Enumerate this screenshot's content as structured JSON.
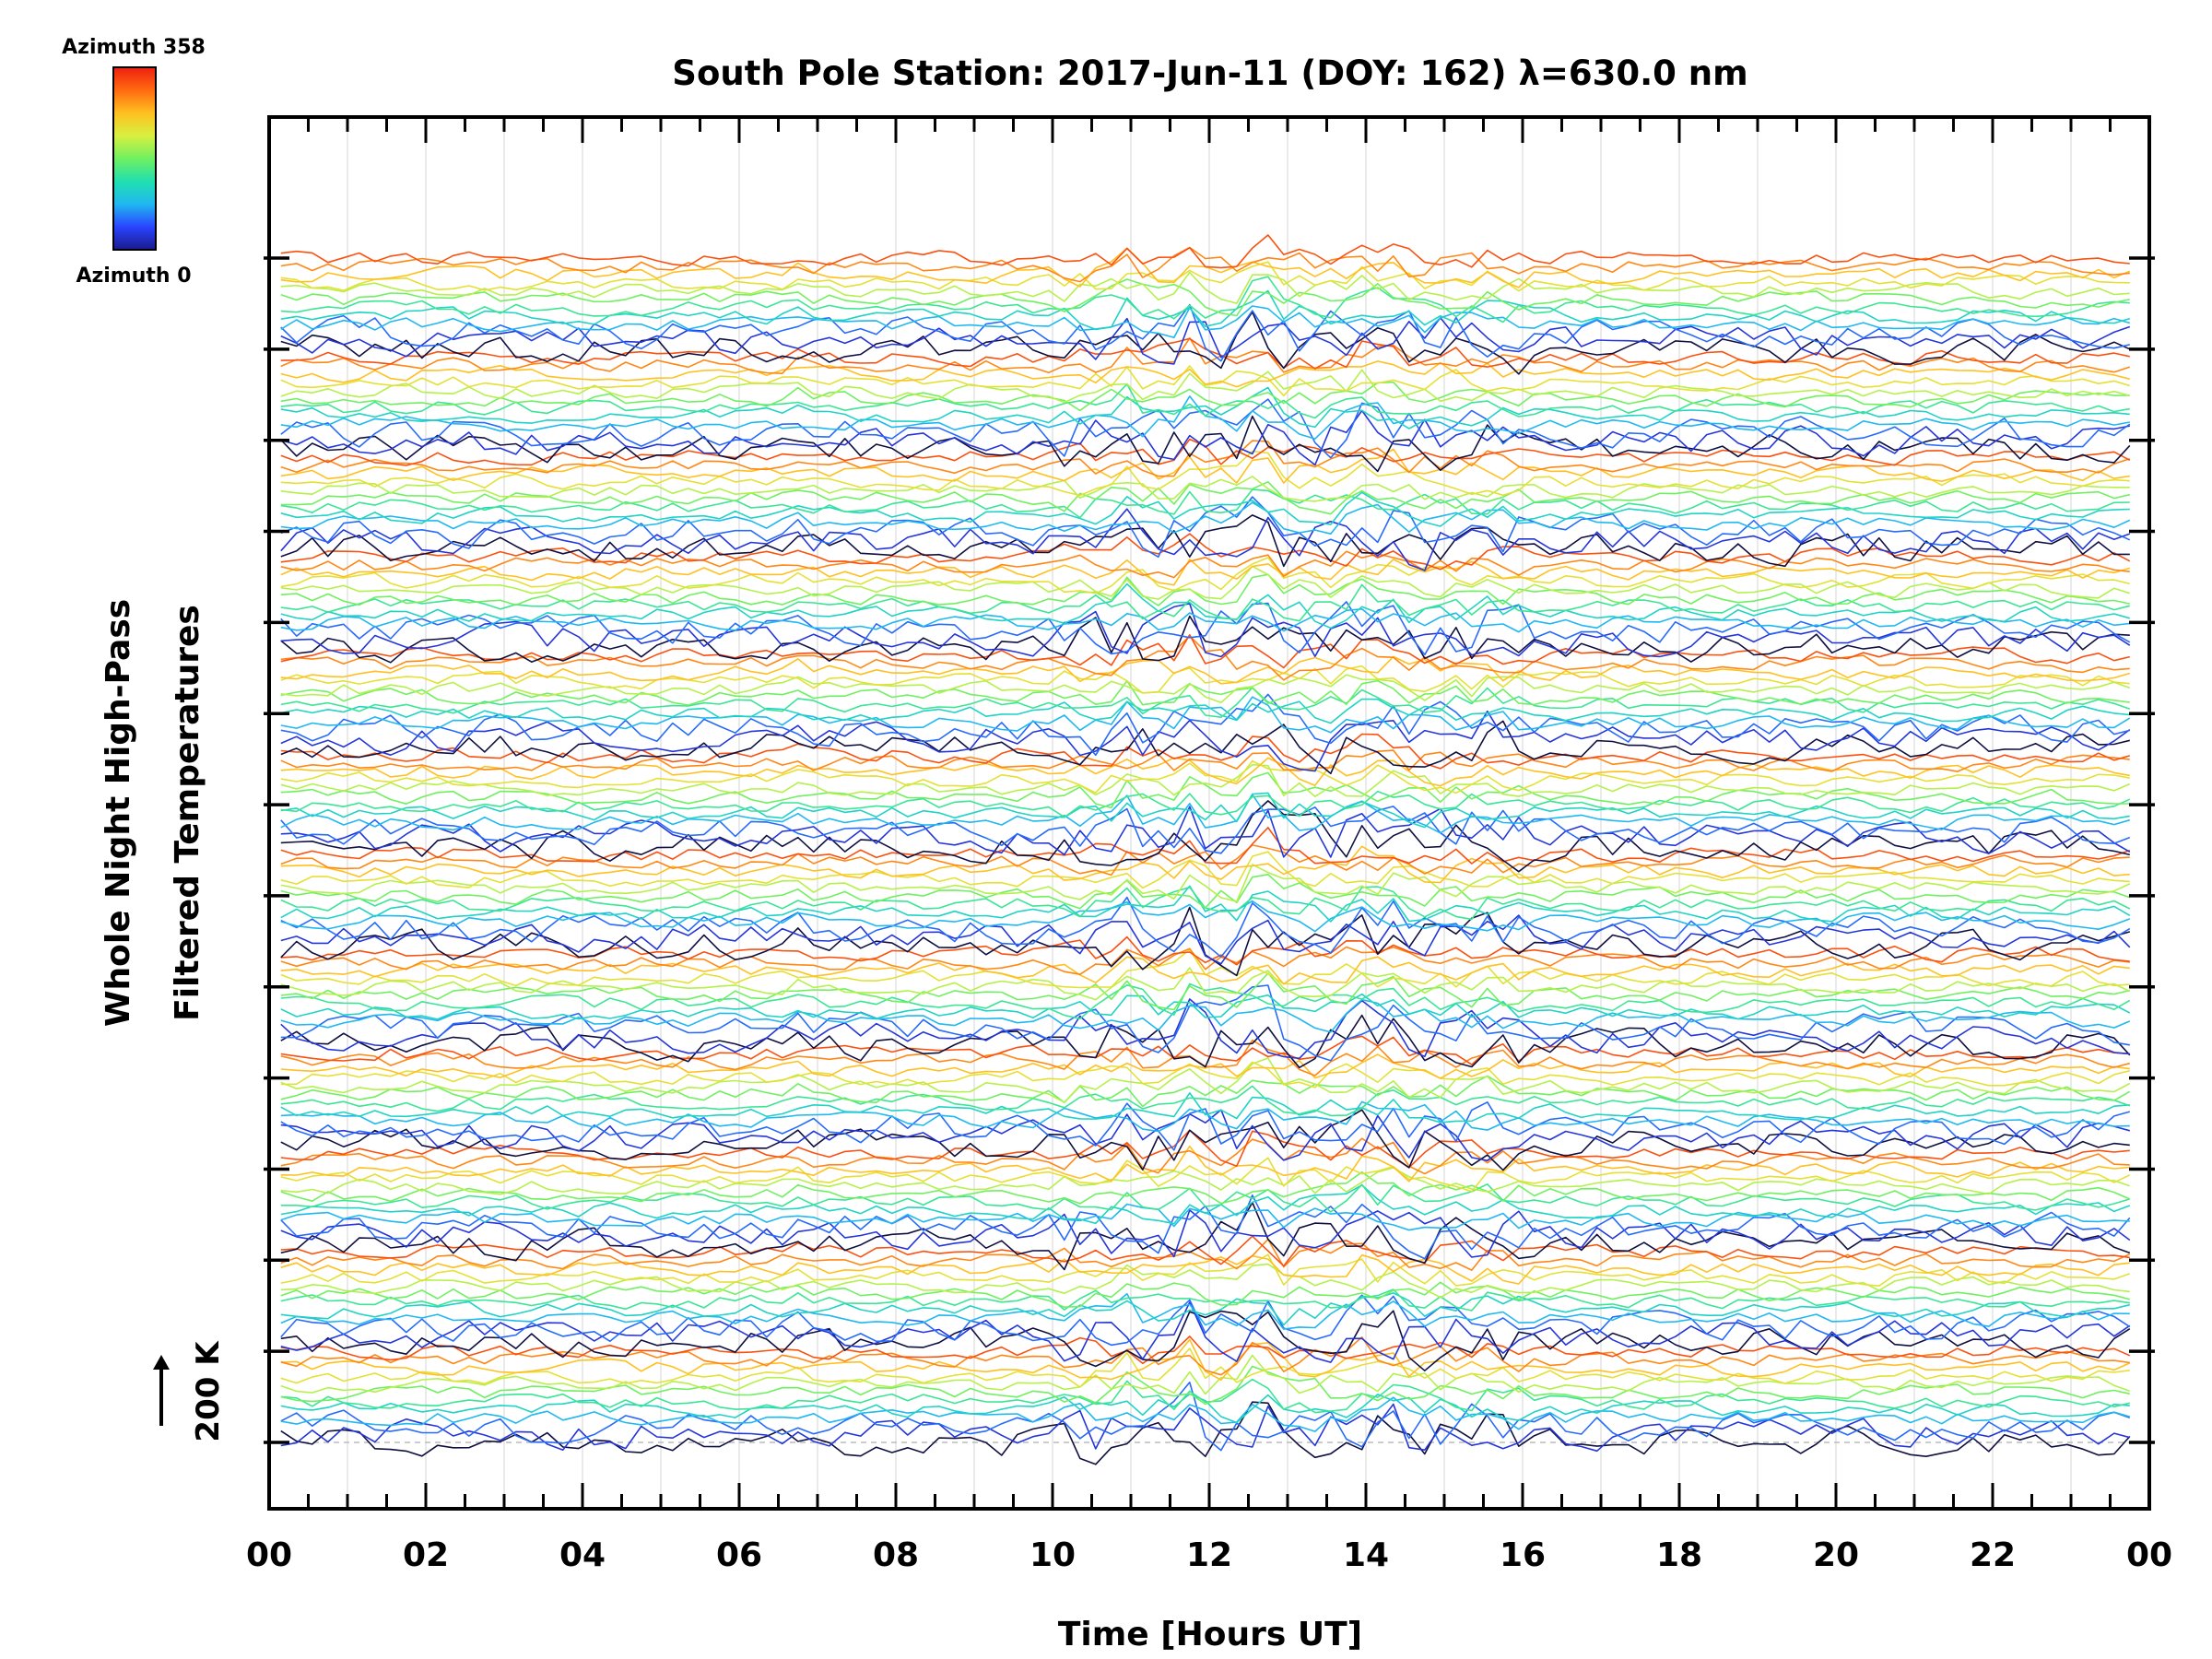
{
  "chart_data": {
    "type": "line",
    "title": "South Pole Station: 2017-Jun-11 (DOY: 162) λ=630.0 nm",
    "xlabel": "Time [Hours UT]",
    "ylabel_line1": "Whole Night High-Pass",
    "ylabel_line2": "Filtered Temperatures",
    "scale_bar_label": "200 K",
    "colorbar": {
      "top_label": "Azimuth 358",
      "bottom_label": "Azimuth 0",
      "stops": [
        "#1a1a8c",
        "#2a44ff",
        "#20b8f0",
        "#20e0b0",
        "#70f060",
        "#d8f040",
        "#ffc020",
        "#ff6a10",
        "#ee2010"
      ]
    },
    "x_range": [
      0,
      24
    ],
    "x_ticks": [
      "00",
      "02",
      "04",
      "06",
      "08",
      "10",
      "12",
      "14",
      "16",
      "18",
      "20",
      "22",
      "00"
    ],
    "x_tick_values": [
      0,
      2,
      4,
      6,
      8,
      10,
      12,
      14,
      16,
      18,
      20,
      22,
      24
    ],
    "num_series": 144,
    "series_per_cycle": 12,
    "vertical_offset_K": 70,
    "sample_interval_h": 0.2,
    "notes": "Stacked, vertically offset high-pass filtered temperature traces colored by azimuth. Individual values are not labeled; shapes reproduced qualitatively with prominent dips near 11.0, 11.7, 12.6, 13.9 and 14.3 UT.",
    "dip_events": [
      {
        "t": 10.95,
        "depth_K": 45
      },
      {
        "t": 11.75,
        "depth_K": 55
      },
      {
        "t": 12.65,
        "depth_K": 110
      },
      {
        "t": 13.9,
        "depth_K": 50
      },
      {
        "t": 14.25,
        "depth_K": 60
      },
      {
        "t": 15.55,
        "depth_K": 18
      },
      {
        "t": 6.75,
        "depth_K": 20
      }
    ]
  }
}
